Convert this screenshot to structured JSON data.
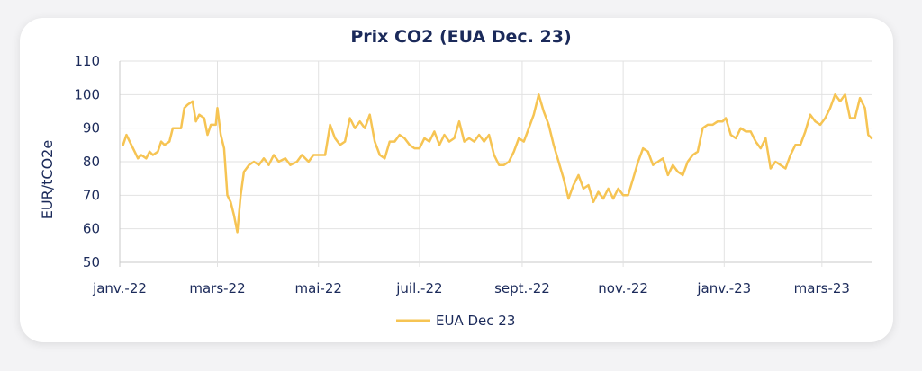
{
  "chart_data": {
    "type": "line",
    "title": "Prix CO2 (EUA Dec. 23)",
    "ylabel": "EUR/tCO2e",
    "xlabel": "",
    "ylim": [
      50,
      110
    ],
    "yticks": [
      50,
      60,
      70,
      80,
      90,
      100,
      110
    ],
    "grid": "vertical and horizontal",
    "legend_position": "bottom",
    "x_tick_labels": [
      "janv.-22",
      "mars-22",
      "mai-22",
      "juil.-22",
      "sept.-22",
      "nov.-22",
      "janv.-23",
      "mars-23"
    ],
    "x_tick_dates": [
      "2022-01-01",
      "2022-03-01",
      "2022-05-01",
      "2022-07-01",
      "2022-09-01",
      "2022-11-01",
      "2023-01-01",
      "2023-03-01"
    ],
    "x_range": [
      "2022-01-01",
      "2023-03-31"
    ],
    "color": "#f6c453",
    "series": [
      {
        "name": "EUA Dec 23",
        "points": [
          [
            "2022-01-03",
            85
          ],
          [
            "2022-01-05",
            88
          ],
          [
            "2022-01-07",
            86
          ],
          [
            "2022-01-10",
            83
          ],
          [
            "2022-01-12",
            81
          ],
          [
            "2022-01-14",
            82
          ],
          [
            "2022-01-17",
            81
          ],
          [
            "2022-01-19",
            83
          ],
          [
            "2022-01-21",
            82
          ],
          [
            "2022-01-24",
            83
          ],
          [
            "2022-01-26",
            86
          ],
          [
            "2022-01-28",
            85
          ],
          [
            "2022-01-31",
            86
          ],
          [
            "2022-02-02",
            90
          ],
          [
            "2022-02-04",
            90
          ],
          [
            "2022-02-07",
            90
          ],
          [
            "2022-02-09",
            96
          ],
          [
            "2022-02-11",
            97
          ],
          [
            "2022-02-14",
            98
          ],
          [
            "2022-02-16",
            92
          ],
          [
            "2022-02-18",
            94
          ],
          [
            "2022-02-21",
            93
          ],
          [
            "2022-02-23",
            88
          ],
          [
            "2022-02-25",
            91
          ],
          [
            "2022-02-28",
            91
          ],
          [
            "2022-03-01",
            96
          ],
          [
            "2022-03-03",
            88
          ],
          [
            "2022-03-05",
            84
          ],
          [
            "2022-03-07",
            70
          ],
          [
            "2022-03-09",
            68
          ],
          [
            "2022-03-11",
            64
          ],
          [
            "2022-03-13",
            59
          ],
          [
            "2022-03-15",
            70
          ],
          [
            "2022-03-17",
            77
          ],
          [
            "2022-03-20",
            79
          ],
          [
            "2022-03-23",
            80
          ],
          [
            "2022-03-26",
            79
          ],
          [
            "2022-03-29",
            81
          ],
          [
            "2022-04-01",
            79
          ],
          [
            "2022-04-04",
            82
          ],
          [
            "2022-04-07",
            80
          ],
          [
            "2022-04-11",
            81
          ],
          [
            "2022-04-14",
            79
          ],
          [
            "2022-04-18",
            80
          ],
          [
            "2022-04-21",
            82
          ],
          [
            "2022-04-25",
            80
          ],
          [
            "2022-04-28",
            82
          ],
          [
            "2022-05-02",
            82
          ],
          [
            "2022-05-05",
            82
          ],
          [
            "2022-05-08",
            91
          ],
          [
            "2022-05-11",
            87
          ],
          [
            "2022-05-14",
            85
          ],
          [
            "2022-05-17",
            86
          ],
          [
            "2022-05-20",
            93
          ],
          [
            "2022-05-23",
            90
          ],
          [
            "2022-05-26",
            92
          ],
          [
            "2022-05-29",
            90
          ],
          [
            "2022-06-01",
            94
          ],
          [
            "2022-06-04",
            86
          ],
          [
            "2022-06-07",
            82
          ],
          [
            "2022-06-10",
            81
          ],
          [
            "2022-06-13",
            86
          ],
          [
            "2022-06-16",
            86
          ],
          [
            "2022-06-19",
            88
          ],
          [
            "2022-06-22",
            87
          ],
          [
            "2022-06-25",
            85
          ],
          [
            "2022-06-28",
            84
          ],
          [
            "2022-07-01",
            84
          ],
          [
            "2022-07-04",
            87
          ],
          [
            "2022-07-07",
            86
          ],
          [
            "2022-07-10",
            89
          ],
          [
            "2022-07-13",
            85
          ],
          [
            "2022-07-16",
            88
          ],
          [
            "2022-07-19",
            86
          ],
          [
            "2022-07-22",
            87
          ],
          [
            "2022-07-25",
            92
          ],
          [
            "2022-07-28",
            86
          ],
          [
            "2022-07-31",
            87
          ],
          [
            "2022-08-03",
            86
          ],
          [
            "2022-08-06",
            88
          ],
          [
            "2022-08-09",
            86
          ],
          [
            "2022-08-12",
            88
          ],
          [
            "2022-08-15",
            82
          ],
          [
            "2022-08-18",
            79
          ],
          [
            "2022-08-21",
            79
          ],
          [
            "2022-08-24",
            80
          ],
          [
            "2022-08-27",
            83
          ],
          [
            "2022-08-30",
            87
          ],
          [
            "2022-09-02",
            86
          ],
          [
            "2022-09-05",
            90
          ],
          [
            "2022-09-08",
            94
          ],
          [
            "2022-09-11",
            100
          ],
          [
            "2022-09-14",
            95
          ],
          [
            "2022-09-17",
            91
          ],
          [
            "2022-09-20",
            85
          ],
          [
            "2022-09-23",
            80
          ],
          [
            "2022-09-26",
            75
          ],
          [
            "2022-09-29",
            69
          ],
          [
            "2022-10-02",
            73
          ],
          [
            "2022-10-05",
            76
          ],
          [
            "2022-10-08",
            72
          ],
          [
            "2022-10-11",
            73
          ],
          [
            "2022-10-14",
            68
          ],
          [
            "2022-10-17",
            71
          ],
          [
            "2022-10-20",
            69
          ],
          [
            "2022-10-23",
            72
          ],
          [
            "2022-10-26",
            69
          ],
          [
            "2022-10-29",
            72
          ],
          [
            "2022-11-01",
            70
          ],
          [
            "2022-11-04",
            70
          ],
          [
            "2022-11-07",
            75
          ],
          [
            "2022-11-10",
            80
          ],
          [
            "2022-11-13",
            84
          ],
          [
            "2022-11-16",
            83
          ],
          [
            "2022-11-19",
            79
          ],
          [
            "2022-11-22",
            80
          ],
          [
            "2022-11-25",
            81
          ],
          [
            "2022-11-28",
            76
          ],
          [
            "2022-12-01",
            79
          ],
          [
            "2022-12-04",
            77
          ],
          [
            "2022-12-07",
            76
          ],
          [
            "2022-12-10",
            80
          ],
          [
            "2022-12-13",
            82
          ],
          [
            "2022-12-16",
            83
          ],
          [
            "2022-12-19",
            90
          ],
          [
            "2022-12-22",
            91
          ],
          [
            "2022-12-25",
            91
          ],
          [
            "2022-12-28",
            92
          ],
          [
            "2022-12-31",
            92
          ],
          [
            "2023-01-02",
            93
          ],
          [
            "2023-01-05",
            88
          ],
          [
            "2023-01-08",
            87
          ],
          [
            "2023-01-11",
            90
          ],
          [
            "2023-01-14",
            89
          ],
          [
            "2023-01-17",
            89
          ],
          [
            "2023-01-20",
            86
          ],
          [
            "2023-01-23",
            84
          ],
          [
            "2023-01-26",
            87
          ],
          [
            "2023-01-29",
            78
          ],
          [
            "2023-02-01",
            80
          ],
          [
            "2023-02-04",
            79
          ],
          [
            "2023-02-07",
            78
          ],
          [
            "2023-02-10",
            82
          ],
          [
            "2023-02-13",
            85
          ],
          [
            "2023-02-16",
            85
          ],
          [
            "2023-02-19",
            89
          ],
          [
            "2023-02-22",
            94
          ],
          [
            "2023-02-25",
            92
          ],
          [
            "2023-02-28",
            91
          ],
          [
            "2023-03-03",
            93
          ],
          [
            "2023-03-06",
            96
          ],
          [
            "2023-03-09",
            100
          ],
          [
            "2023-03-12",
            98
          ],
          [
            "2023-03-15",
            100
          ],
          [
            "2023-03-18",
            93
          ],
          [
            "2023-03-21",
            93
          ],
          [
            "2023-03-24",
            99
          ],
          [
            "2023-03-27",
            96
          ],
          [
            "2023-03-29",
            88
          ],
          [
            "2023-03-31",
            87
          ]
        ]
      }
    ]
  }
}
